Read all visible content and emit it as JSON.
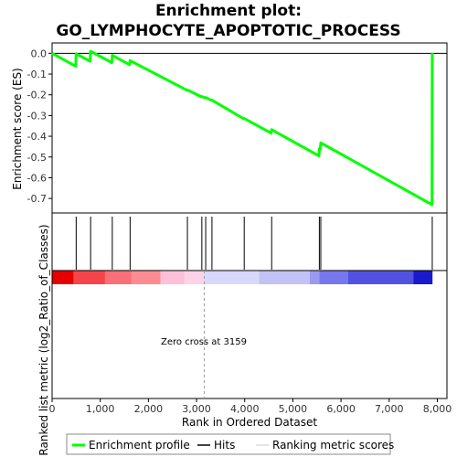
{
  "chart_data": {
    "type": "line",
    "title": "Enrichment plot:",
    "subtitle": "GO_LYMPHOCYTE_APOPTOTIC_PROCESS",
    "top_panel": {
      "ylabel": "Enrichment score (ES)",
      "ylim": [
        -0.77,
        0.05
      ],
      "yticks": [
        {
          "v": 0.0,
          "label": "0.0"
        },
        {
          "v": -0.1,
          "label": "-0.1"
        },
        {
          "v": -0.2,
          "label": "-0.2"
        },
        {
          "v": -0.3,
          "label": "-0.3"
        },
        {
          "v": -0.4,
          "label": "-0.4"
        },
        {
          "v": -0.5,
          "label": "-0.5"
        },
        {
          "v": -0.6,
          "label": "-0.6"
        },
        {
          "v": -0.7,
          "label": "-0.7"
        }
      ],
      "series": [
        {
          "name": "Enrichment profile",
          "color": "#00ff00",
          "x": [
            0,
            490,
            500,
            790,
            800,
            1240,
            1250,
            1610,
            1620,
            2800,
            2810,
            3100,
            3110,
            3180,
            3190,
            3310,
            3320,
            3980,
            3990,
            4550,
            4560,
            5540,
            5550,
            5570,
            5580,
            7890,
            7895
          ],
          "y": [
            0.0,
            -0.062,
            -0.002,
            -0.038,
            0.01,
            -0.045,
            -0.01,
            -0.055,
            -0.035,
            -0.178,
            -0.176,
            -0.21,
            -0.208,
            -0.215,
            -0.213,
            -0.227,
            -0.226,
            -0.316,
            -0.314,
            -0.385,
            -0.368,
            -0.495,
            -0.46,
            -0.463,
            -0.432,
            -0.73,
            0.0
          ]
        }
      ]
    },
    "hits": {
      "name": "Hits",
      "color": "#000000",
      "x": [
        500,
        800,
        1250,
        1620,
        2810,
        3110,
        3190,
        3320,
        3990,
        4560,
        5550,
        5580,
        7895
      ]
    },
    "ranking_bar": {
      "name": "Ranking metric scores",
      "segments": [
        {
          "x0": 0,
          "x1": 450,
          "color": "#e60000"
        },
        {
          "x0": 450,
          "x1": 1100,
          "color": "#f5454a"
        },
        {
          "x0": 1100,
          "x1": 1650,
          "color": "#fa6f78"
        },
        {
          "x0": 1650,
          "x1": 2250,
          "color": "#fc8c92"
        },
        {
          "x0": 2250,
          "x1": 2750,
          "color": "#fdc0d8"
        },
        {
          "x0": 2750,
          "x1": 3159,
          "color": "#fcd2e6"
        },
        {
          "x0": 3159,
          "x1": 4300,
          "color": "#d8d8fa"
        },
        {
          "x0": 4300,
          "x1": 5350,
          "color": "#c2c2f6"
        },
        {
          "x0": 5350,
          "x1": 5550,
          "color": "#9a9af0"
        },
        {
          "x0": 5550,
          "x1": 6150,
          "color": "#7777ee"
        },
        {
          "x0": 6150,
          "x1": 7500,
          "color": "#5252e2"
        },
        {
          "x0": 7500,
          "x1": 7900,
          "color": "#1a1acc"
        }
      ]
    },
    "bottom_panel": {
      "ylabel": "Ranked list metric (log2_Ratio_of_Classes)",
      "zero_cross_label": "Zero cross at 3159",
      "zero_cross": 3159
    },
    "xlabel": "Rank in Ordered Dataset",
    "xlim": [
      0,
      8200
    ],
    "xticks": [
      {
        "v": 0,
        "label": "0"
      },
      {
        "v": 1000,
        "label": "1,000"
      },
      {
        "v": 2000,
        "label": "2,000"
      },
      {
        "v": 3000,
        "label": "3,000"
      },
      {
        "v": 4000,
        "label": "4,000"
      },
      {
        "v": 5000,
        "label": "5,000"
      },
      {
        "v": 6000,
        "label": "6,000"
      },
      {
        "v": 7000,
        "label": "7,000"
      },
      {
        "v": 8000,
        "label": "8,000"
      }
    ],
    "legend": {
      "placement": "bottom",
      "entries": [
        {
          "label": "Enrichment profile",
          "color": "#00ff00"
        },
        {
          "label": "Hits",
          "color": "#000000"
        },
        {
          "label": "Ranking metric scores",
          "color": "#c8c8c8"
        }
      ]
    }
  }
}
